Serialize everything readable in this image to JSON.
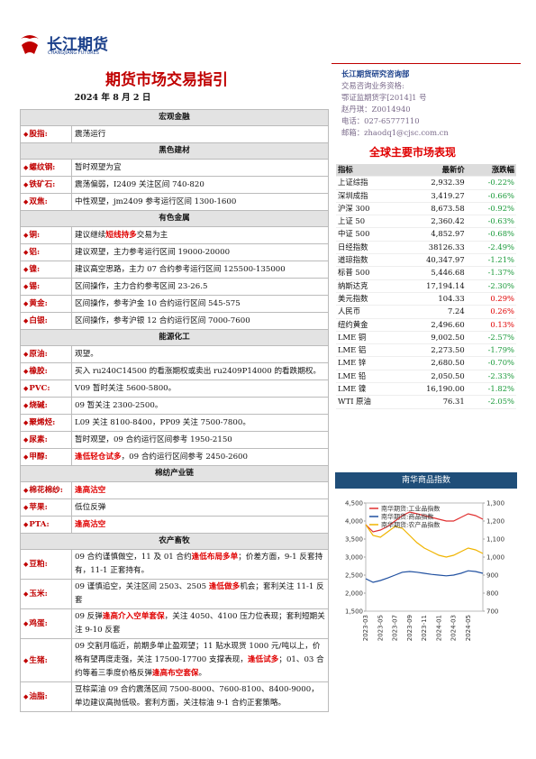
{
  "header": {
    "logo_name": "长江期货",
    "logo_en": "CHANGJIANG FUTURES",
    "title": "期货市场交易指引",
    "date": "2024 年 8 月 2 日"
  },
  "left_table": {
    "sections": [
      {
        "title": "宏观金融",
        "rows": [
          {
            "label": "股指:",
            "text": [
              "震荡运行"
            ]
          }
        ]
      },
      {
        "title": "黑色建材",
        "rows": [
          {
            "label": "螺纹钢:",
            "text": [
              "暂时观望为宜"
            ]
          },
          {
            "label": "铁矿石:",
            "text": [
              "震荡偏弱，I2409 关注区间 740-820"
            ]
          },
          {
            "label": "双焦:",
            "text": [
              "中性观望，jm2409 参考运行区间 1300-1600"
            ]
          }
        ]
      },
      {
        "title": "有色金属",
        "rows": [
          {
            "label": "铜:",
            "text": [
              "建议继续",
              {
                "text": "短线持多",
                "red": true
              },
              "交易为主"
            ]
          },
          {
            "label": "铝:",
            "text": [
              "建议观望，主力参考运行区间 19000-20000"
            ]
          },
          {
            "label": "镍:",
            "text": [
              "建议高空思路，主力 07 合约参考运行区间 125500-135000"
            ]
          },
          {
            "label": "锡:",
            "text": [
              "区间操作，主力合约参考区间 23-26.5"
            ]
          },
          {
            "label": "黄金:",
            "text": [
              "区间操作，参考沪金 10 合约运行区间 545-575"
            ]
          },
          {
            "label": "白银:",
            "text": [
              "区间操作，参考沪银 12 合约运行区间 7000-7600"
            ]
          }
        ]
      },
      {
        "title": "能源化工",
        "rows": [
          {
            "label": "原油:",
            "text": [
              "观望。"
            ]
          },
          {
            "label": "橡胶:",
            "text": [
              "买入 ru240C14500 的看涨期权或卖出 ru2409P14000 的看跌期权。"
            ]
          },
          {
            "label": "PVC:",
            "text": [
              "V09 暂时关注 5600-5800。"
            ]
          },
          {
            "label": "烧碱:",
            "text": [
              "09 暂关注 2300-2500。"
            ]
          },
          {
            "label": "聚烯烃:",
            "text": [
              "L09 关注 8100-8400，PP09 关注 7500-7800。"
            ]
          },
          {
            "label": "尿素:",
            "text": [
              "暂时观望，09 合约运行区间参考 1950-2150"
            ]
          },
          {
            "label": "甲醇:",
            "text": [
              {
                "text": "逢低轻仓试多",
                "red": true
              },
              "，09 合约运行区间参考 2450-2600"
            ]
          }
        ]
      },
      {
        "title": "棉纺产业链",
        "rows": [
          {
            "label": "棉花棉纱:",
            "text": [
              {
                "text": "逢高沽空",
                "red": true
              }
            ]
          },
          {
            "label": "苹果:",
            "text": [
              "低位反弹"
            ]
          },
          {
            "label": "PTA:",
            "text": [
              {
                "text": "逢高沽空",
                "red": true
              }
            ]
          }
        ]
      },
      {
        "title": "农产畜牧",
        "rows": [
          {
            "label": "豆粕:",
            "text": [
              "09 合约谨慎做空，11 及 01 合约",
              {
                "text": "逢低布局多单",
                "red": true
              },
              "；价差方面，9-1 反套持有，11-1 正套持有。"
            ]
          },
          {
            "label": "玉米:",
            "text": [
              "09 谨慎追空，关注区间 2503、2505 ",
              {
                "text": "逢低做多",
                "red": true
              },
              "机会；套利关注 11-1 反套"
            ]
          },
          {
            "label": "鸡蛋:",
            "text": [
              "09 反弹",
              {
                "text": "逢高介入空单套保",
                "red": true
              },
              "，关注 4050、4100 压力位表现；套利短期关注 9-10 反套"
            ]
          },
          {
            "label": "生猪:",
            "text": [
              "09 交割月临近，前期多单止盈观望；11 贴水现货 1000 元/吨以上，价格有望再度走强，关注 17500-17700 支撑表现，",
              {
                "text": "逢低试多",
                "red": true
              },
              "；01、03 合约等着三季度价格反弹",
              {
                "text": "逢高布空套保",
                "red": true
              },
              "。"
            ]
          },
          {
            "label": "油脂:",
            "text": [
              "豆棕菜油 09 合约震荡区间 7500-8000、7600-8100、8400-9000，单边建议高抛低吸。套利方面，关注棕油 9-1 合约正套策略。"
            ]
          }
        ]
      }
    ]
  },
  "contact": {
    "dept": "长江期货研究咨询部",
    "lines": [
      "交易咨询业务资格:",
      "鄂证监期货字[2014]1 号",
      "赵丹琪：Z0014940",
      "电话：027-65777110",
      "邮箱：zhaodq1@cjsc.com.cn"
    ]
  },
  "market": {
    "title": "全球主要市场表现",
    "header": [
      "指标",
      "最新价",
      "涨跌幅"
    ],
    "rows": [
      [
        "上证综指",
        "2,932.39",
        "-0.22%"
      ],
      [
        "深圳成指",
        "3,419.27",
        "-0.66%"
      ],
      [
        "沪深 300",
        "8,673.58",
        "-0.92%"
      ],
      [
        "上证 50",
        "2,360.42",
        "-0.63%"
      ],
      [
        "中证 500",
        "4,852.97",
        "-0.68%"
      ],
      [
        "日经指数",
        "38126.33",
        "-2.49%"
      ],
      [
        "道琼指数",
        "40,347.97",
        "-1.21%"
      ],
      [
        "标普 500",
        "5,446.68",
        "-1.37%"
      ],
      [
        "纳斯达克",
        "17,194.14",
        "-2.30%"
      ],
      [
        "美元指数",
        "104.33",
        "0.29%"
      ],
      [
        "人民币",
        "7.24",
        "0.26%"
      ],
      [
        "纽约黄金",
        "2,496.60",
        "0.13%"
      ],
      [
        "LME 铜",
        "9,002.50",
        "-2.57%"
      ],
      [
        "LME 铝",
        "2,273.50",
        "-1.79%"
      ],
      [
        "LME 锌",
        "2,680.50",
        "-0.70%"
      ],
      [
        "LME 铅",
        "2,050.50",
        "-2.33%"
      ],
      [
        "LME 镍",
        "16,190.00",
        "-1.82%"
      ],
      [
        "WTI 原油",
        "76.31",
        "-2.05%"
      ]
    ]
  },
  "chart_data": {
    "type": "line",
    "title": "南华商品指数",
    "categories": [
      "2023-03",
      null,
      "2023-05",
      null,
      "2023-07",
      null,
      "2023-09",
      null,
      "2023-11",
      null,
      "2024-01",
      null,
      "2024-03",
      null,
      "2024-05",
      null,
      null
    ],
    "series": [
      {
        "name": "南华期货:工业品指数",
        "color": "#e03030",
        "values": [
          3900,
          3700,
          3750,
          3850,
          4000,
          4150,
          4250,
          4200,
          4150,
          4100,
          4050,
          4000,
          4000,
          4100,
          4200,
          4150,
          4050
        ]
      },
      {
        "name": "南华期货:商品指数",
        "color": "#2050a0",
        "values": [
          2400,
          2300,
          2350,
          2420,
          2500,
          2580,
          2600,
          2580,
          2550,
          2520,
          2500,
          2480,
          2500,
          2550,
          2620,
          2600,
          2550
        ]
      },
      {
        "name": "南华期货:农产品指数",
        "color": "#f0b400",
        "axis": "y2",
        "values": [
          1180,
          1120,
          1110,
          1140,
          1170,
          1160,
          1120,
          1080,
          1050,
          1030,
          1010,
          1000,
          1010,
          1030,
          1050,
          1040,
          1020
        ]
      }
    ],
    "ylim": [
      1500,
      4500
    ],
    "yticks": [
      {
        "value": 1500,
        "label": "1,500"
      },
      {
        "value": 2000,
        "label": "2,000"
      },
      {
        "value": 2500,
        "label": "2,500"
      },
      {
        "value": 3000,
        "label": "3,000"
      },
      {
        "value": 3500,
        "label": "3,500"
      },
      {
        "value": 4000,
        "label": "4,000"
      },
      {
        "value": 4500,
        "label": "4,500"
      }
    ],
    "y2lim": [
      700,
      1300
    ],
    "y2ticks": [
      700,
      800,
      900,
      {
        "value": 1000,
        "label": "1,000"
      },
      {
        "value": 1100,
        "label": "1,100"
      },
      {
        "value": 1200,
        "label": "1,200"
      },
      {
        "value": 1300,
        "label": "1,300"
      }
    ]
  }
}
